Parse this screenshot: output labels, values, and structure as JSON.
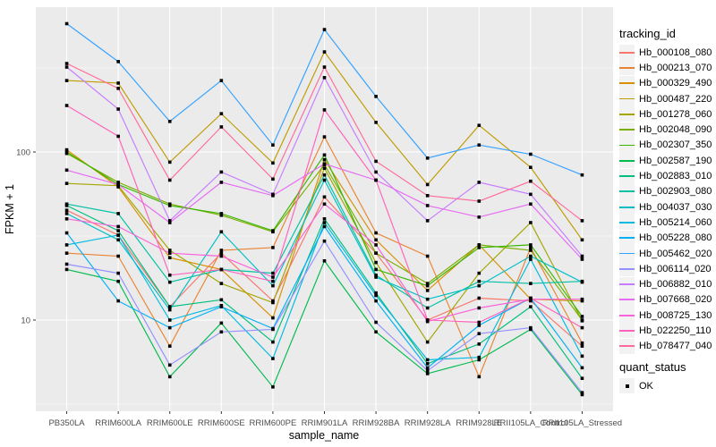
{
  "chart_data": {
    "type": "line",
    "title": "",
    "xlabel": "sample_name",
    "ylabel": "FPKM + 1",
    "y_scale": "log10",
    "y_axis_ticks": [
      "10",
      "100"
    ],
    "y_tick_values": [
      10,
      100
    ],
    "y_minor_tick_values": [
      3.162,
      31.623,
      316.228
    ],
    "ylim": [
      2.9,
      700
    ],
    "grid": true,
    "legend_position": "right",
    "point_shape": "filled-square",
    "point_color": "#000000",
    "categories": [
      "PB350LA",
      "RRIM600LA",
      "RRIM600LE",
      "RRIM600SE",
      "RRIM600PE",
      "RRIM901LA",
      "RRIM928BA",
      "RRIM928LA",
      "RRIM928LE",
      "RRII105LA_Control",
      "RRII105LA_Stressed"
    ],
    "series": [
      {
        "name": "Hb_000108_080",
        "color": "#F8766D",
        "values": [
          45,
          32,
          12,
          25,
          13,
          54,
          25,
          10,
          13.5,
          13,
          7
        ]
      },
      {
        "name": "Hb_000213_070",
        "color": "#EA8331",
        "values": [
          25,
          24,
          7,
          26,
          27,
          123,
          33,
          24,
          4.6,
          27,
          7.3
        ]
      },
      {
        "name": "Hb_000329_490",
        "color": "#D89000",
        "values": [
          103,
          62,
          23.5,
          20,
          10.3,
          90,
          30,
          15,
          28,
          13.3,
          13
        ]
      },
      {
        "name": "Hb_000487_220",
        "color": "#C09B00",
        "values": [
          266,
          257,
          87,
          169,
          86,
          394,
          150,
          64,
          144,
          81,
          30
        ]
      },
      {
        "name": "Hb_001278_060",
        "color": "#A3A500",
        "values": [
          65,
          63,
          26,
          16.5,
          12.7,
          80,
          22,
          7.4,
          19,
          38,
          9.9
        ]
      },
      {
        "name": "Hb_002048_090",
        "color": "#7CAE00",
        "values": [
          98,
          66,
          49,
          42,
          33.5,
          84,
          25,
          16.5,
          28,
          26,
          10
        ]
      },
      {
        "name": "Hb_002307_350",
        "color": "#39B600",
        "values": [
          100,
          64,
          48,
          43,
          34,
          96,
          20,
          16,
          27,
          28,
          10.5
        ]
      },
      {
        "name": "Hb_002587_190",
        "color": "#00BB4E",
        "values": [
          20,
          17,
          4.6,
          9.6,
          4,
          22.5,
          8.5,
          4.8,
          5.8,
          8.8,
          3.6
        ]
      },
      {
        "name": "Hb_002883_010",
        "color": "#00BF7D",
        "values": [
          48,
          34,
          12,
          13.2,
          7.4,
          40,
          14.5,
          5.5,
          7.2,
          12,
          4.5
        ]
      },
      {
        "name": "Hb_002903_080",
        "color": "#00C1A3",
        "values": [
          49,
          43,
          16.8,
          20,
          19,
          73,
          18.5,
          11.8,
          17,
          16.5,
          17
        ]
      },
      {
        "name": "Hb_004037_030",
        "color": "#00BFC4",
        "values": [
          43,
          30,
          11.5,
          33.5,
          16,
          68,
          18,
          13.3,
          16,
          24,
          16.8
        ]
      },
      {
        "name": "Hb_005214_060",
        "color": "#00BAE0",
        "values": [
          28,
          32,
          10,
          12.2,
          5.9,
          38,
          14,
          5.8,
          6,
          23,
          6.1
        ]
      },
      {
        "name": "Hb_005228_080",
        "color": "#00B0F6",
        "values": [
          33,
          13,
          9,
          12,
          8.9,
          36,
          13,
          5.2,
          9.3,
          13.5,
          5.2
        ]
      },
      {
        "name": "Hb_005462_020",
        "color": "#35A2FF",
        "values": [
          580,
          345,
          152,
          266,
          110,
          535,
          214,
          92,
          110,
          97,
          73
        ]
      },
      {
        "name": "Hb_006114_020",
        "color": "#9590FF",
        "values": [
          21.5,
          19,
          5.4,
          8.5,
          8.8,
          29.5,
          9.7,
          5,
          8.3,
          9,
          3.7
        ]
      },
      {
        "name": "Hb_006882_010",
        "color": "#C77CFF",
        "values": [
          320,
          180,
          39,
          76,
          56,
          277,
          76,
          39,
          66,
          56,
          24
        ]
      },
      {
        "name": "Hb_007668_020",
        "color": "#E76BF3",
        "values": [
          78,
          64,
          38,
          66,
          55,
          85,
          68,
          48,
          41,
          49,
          23
        ]
      },
      {
        "name": "Hb_008725_130",
        "color": "#FA62DB",
        "values": [
          40,
          36,
          25,
          24,
          18,
          49,
          28,
          9.8,
          11.8,
          13.3,
          13.3
        ]
      },
      {
        "name": "Hb_022250_110",
        "color": "#FF62BC",
        "values": [
          189,
          124,
          18.5,
          20,
          17,
          178,
          68,
          10,
          9.7,
          13.5,
          9
        ]
      },
      {
        "name": "Hb_078477_040",
        "color": "#FF6A98",
        "values": [
          336,
          239,
          68,
          141,
          69,
          320,
          88,
          55,
          51,
          67,
          39
        ]
      }
    ]
  },
  "legend": {
    "color_legend_title": "tracking_id",
    "shape_legend_title": "quant_status",
    "shape_legend_items": [
      {
        "label": "OK"
      }
    ]
  },
  "colors": {
    "panel_bg": "#EBEBEB",
    "grid": "#FFFFFF",
    "tick_label": "#4D4D4D",
    "tick_mark": "#333333",
    "axis_title": "#000000",
    "legend_key_bg": "#F2F2F2"
  }
}
